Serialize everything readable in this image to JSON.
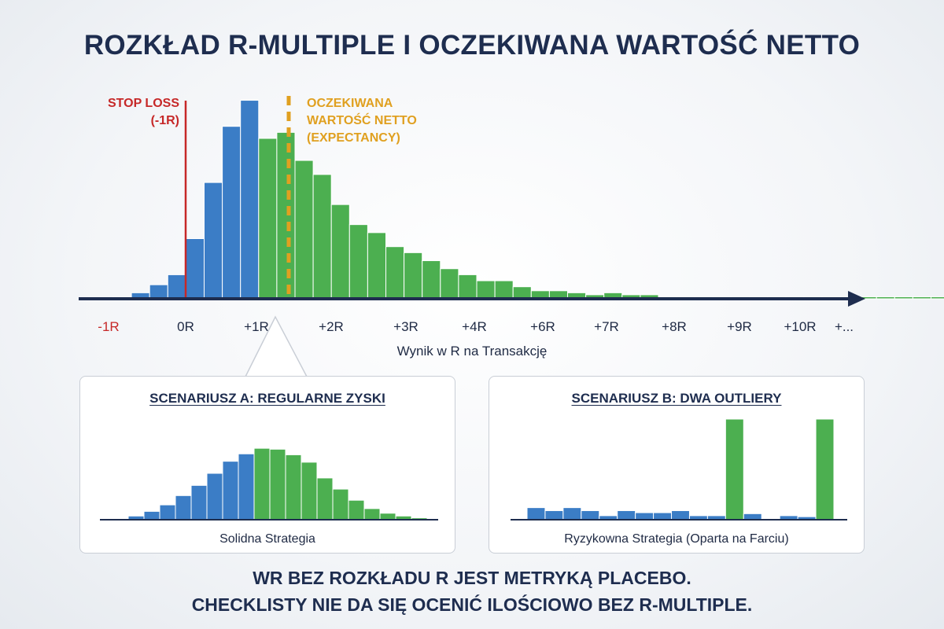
{
  "title": "ROZKŁAD R-MULTIPLE I OCZEKIWANA WARTOŚĆ NETTO",
  "colors": {
    "loss": "#3b7dc6",
    "win": "#4caf50",
    "stop": "#c62828",
    "expectancy": "#e0a020",
    "axis": "#1e2d4f"
  },
  "chart_data": [
    {
      "type": "bar",
      "title": "ROZKŁAD R-MULTIPLE I OCZEKIWANA WARTOŚĆ NETTO",
      "xlabel": "Wynik w R na Transakcję",
      "ylabel": "",
      "tick_labels": [
        "-1R",
        "0R",
        "+1R",
        "+2R",
        "+3R",
        "+4R",
        "+6R",
        "+7R",
        "+8R",
        "+9R",
        "+10R",
        "+..."
      ],
      "series": [
        {
          "category": "loss",
          "values": [
            0.1,
            0.3,
            0.7,
            1.2,
            3.0,
            5.8,
            8.6,
            9.9
          ]
        },
        {
          "category": "win",
          "values": [
            8.0,
            8.3,
            6.9,
            6.2,
            4.7,
            3.7,
            3.3,
            2.6,
            2.3,
            1.9,
            1.5,
            1.2,
            0.9,
            0.9,
            0.6,
            0.4,
            0.4,
            0.3,
            0.2,
            0.3,
            0.2,
            0.2,
            0.1,
            0.1,
            0.1,
            0.1,
            0.1,
            0.1,
            0.1,
            0.1,
            0.1,
            0.1,
            0.1,
            0.1,
            0.1,
            0.1,
            0.1,
            0.1,
            0.2
          ]
        }
      ],
      "annotations": [
        {
          "type": "vline",
          "label": "STOP LOSS\n(-1R)",
          "color": "stop"
        },
        {
          "type": "vline-dashed",
          "label": "OCZEKIWANA\nWARTOŚĆ NETTO\n(EXPECTANCY)",
          "color": "expectancy"
        }
      ]
    },
    {
      "type": "bar",
      "title": "SCENARIUSZ A: REGULARNE ZYSKI",
      "caption": "Solidna Strategia",
      "bars": [
        {
          "c": "loss",
          "v": 0.1
        },
        {
          "c": "loss",
          "v": 0.4
        },
        {
          "c": "loss",
          "v": 0.9
        },
        {
          "c": "loss",
          "v": 1.6
        },
        {
          "c": "loss",
          "v": 2.6
        },
        {
          "c": "loss",
          "v": 3.7
        },
        {
          "c": "loss",
          "v": 5.0
        },
        {
          "c": "loss",
          "v": 6.3
        },
        {
          "c": "loss",
          "v": 7.1
        },
        {
          "c": "win",
          "v": 7.7
        },
        {
          "c": "win",
          "v": 7.6
        },
        {
          "c": "win",
          "v": 7.0
        },
        {
          "c": "win",
          "v": 6.2
        },
        {
          "c": "win",
          "v": 4.5
        },
        {
          "c": "win",
          "v": 3.3
        },
        {
          "c": "win",
          "v": 2.1
        },
        {
          "c": "win",
          "v": 1.2
        },
        {
          "c": "win",
          "v": 0.7
        },
        {
          "c": "win",
          "v": 0.4
        },
        {
          "c": "win",
          "v": 0.2
        }
      ]
    },
    {
      "type": "bar",
      "title": "SCENARIUSZ B: DWA OUTLIERY",
      "caption": "Ryzykowna Strategia (Oparta na Farciu)",
      "bars": [
        {
          "c": "loss",
          "v": 1.2
        },
        {
          "c": "loss",
          "v": 0.9
        },
        {
          "c": "loss",
          "v": 1.2
        },
        {
          "c": "loss",
          "v": 0.9
        },
        {
          "c": "loss",
          "v": 0.4
        },
        {
          "c": "loss",
          "v": 0.9
        },
        {
          "c": "loss",
          "v": 0.7
        },
        {
          "c": "loss",
          "v": 0.7
        },
        {
          "c": "loss",
          "v": 0.9
        },
        {
          "c": "loss",
          "v": 0.4
        },
        {
          "c": "loss",
          "v": 0.4
        },
        {
          "c": "win",
          "v": 10.0
        },
        {
          "c": "loss",
          "v": 0.6
        },
        {
          "c": "loss",
          "v": 0.1
        },
        {
          "c": "loss",
          "v": 0.4
        },
        {
          "c": "loss",
          "v": 0.3
        },
        {
          "c": "win",
          "v": 10.0
        }
      ]
    }
  ],
  "footer": {
    "line1": "WR BEZ ROZKŁADU R JEST METRYKĄ PLACEBO.",
    "line2": "CHECKLISTY NIE DA SIĘ OCENIĆ ILOŚCIOWO BEZ R-MULTIPLE."
  }
}
